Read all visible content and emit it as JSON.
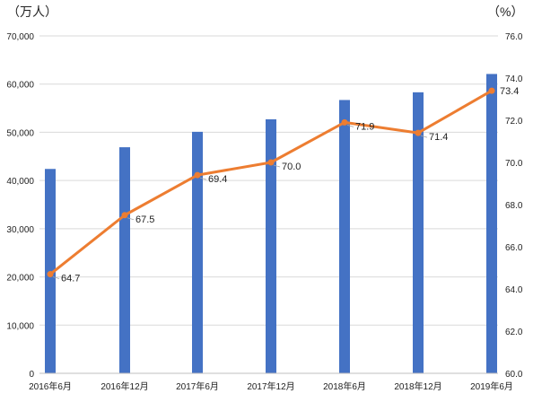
{
  "chart_data": {
    "type": "bar+line",
    "title": "",
    "categories": [
      "2016年6月",
      "2016年12月",
      "2017年6月",
      "2017年12月",
      "2018年6月",
      "2018年12月",
      "2019年6月"
    ],
    "series": [
      {
        "type": "bar",
        "axis": "left",
        "values": [
          42400,
          46900,
          50100,
          52700,
          56700,
          58300,
          62100
        ],
        "color": "#4472C4"
      },
      {
        "type": "line",
        "axis": "right",
        "values": [
          64.7,
          67.5,
          69.4,
          70.0,
          71.9,
          71.4,
          73.4
        ],
        "value_labels": [
          "64.7",
          "67.5",
          "69.4",
          "70.0",
          "71.9",
          "71.4",
          "73.4"
        ],
        "color": "#ED7D31"
      }
    ],
    "left_axis": {
      "unit": "（万人）",
      "ylim": [
        0,
        70000
      ],
      "ticks": [
        "0",
        "10,000",
        "20,000",
        "30,000",
        "40,000",
        "50,000",
        "60,000",
        "70,000"
      ]
    },
    "right_axis": {
      "unit": "（%）",
      "ylim": [
        60,
        76
      ],
      "ticks": [
        "60.0",
        "62.0",
        "64.0",
        "66.0",
        "68.0",
        "70.0",
        "72.0",
        "74.0",
        "76.0"
      ]
    },
    "grid": true,
    "legend": "none"
  }
}
